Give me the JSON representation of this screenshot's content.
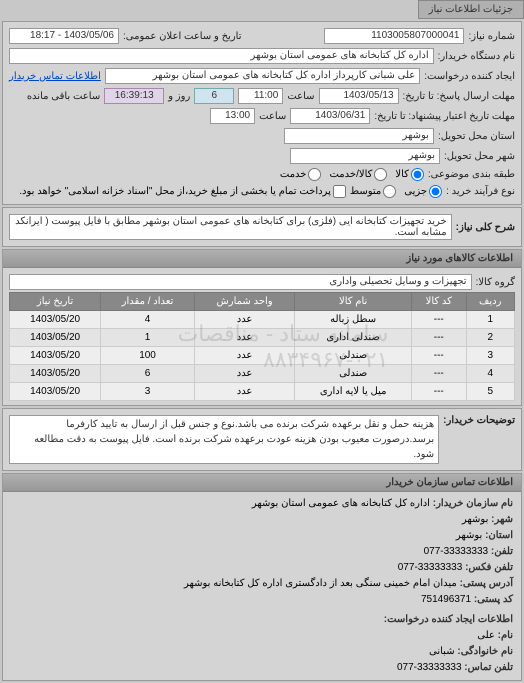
{
  "tabs": {
    "details": "جزئیات اطلاعات نیاز"
  },
  "header": {
    "reqno_lbl": "شماره نیاز:",
    "reqno": "1103005807000041",
    "announce_lbl": "تاریخ و ساعت اعلان عمومی:",
    "announce": "1403/05/06 - 18:17",
    "buyer_lbl": "نام دستگاه خریدار:",
    "buyer": "اداره کل کتابخانه های عمومی استان بوشهر",
    "requester_lbl": "ایجاد کننده درخواست:",
    "requester": "علی شبانی کارپرداز اداره کل کتابخانه های عمومی استان بوشهر",
    "contact_link": "اطلاعات تماس خریدار",
    "deadline_lbl": "مهلت ارسال پاسخ: تا تاریخ:",
    "deadline_date": "1403/05/13",
    "time_lbl": "ساعت",
    "deadline_time": "11:00",
    "days_left": "6",
    "days_lbl": "روز و",
    "hms_left": "16:39:13",
    "hms_lbl": "ساعت باقی مانده",
    "validity_lbl": "مهلت تاریخ اعتبار پیشنهاد: تا تاریخ:",
    "validity_date": "1403/06/31",
    "validity_time": "13:00",
    "province_lbl": "استان محل تحویل:",
    "province": "بوشهر",
    "city_lbl": "شهر محل تحویل:",
    "city": "بوشهر",
    "cat_lbl": "طبقه بندی موضوعی:",
    "cat_opts": {
      "goods": "کالا",
      "service": "کالا/خدمت",
      "svc": "خدمت"
    },
    "cat_selected": "goods",
    "purchase_lbl": "نوع فرآیند خرید :",
    "purchase_opts": {
      "low": "جزیی",
      "mid": "متوسط"
    },
    "purchase_selected": "low",
    "payment_lbl": "پرداخت تمام یا بخشی از مبلغ خرید،از محل \"اسناد خزانه اسلامی\" خواهد بود."
  },
  "need": {
    "title_lbl": "شرح کلی نیاز:",
    "title": "خرید تجهیزات کتابخانه ایی (فلزی) برای کتابخانه های عمومی استان بوشهر مطابق با فایل پیوست ( ایرانکد مشابه است."
  },
  "goods": {
    "section": "اطلاعات کالاهای مورد نیاز",
    "group_lbl": "گروه کالا:",
    "group": "تجهیزات و وسایل تحصیلی واداری",
    "cols": [
      "ردیف",
      "کد کالا",
      "نام کالا",
      "واحد شمارش",
      "تعداد / مقدار",
      "تاریخ نیاز"
    ],
    "rows": [
      [
        "1",
        "---",
        "سطل زباله",
        "عدد",
        "4",
        "1403/05/20"
      ],
      [
        "2",
        "---",
        "صندلی اداری",
        "عدد",
        "1",
        "1403/05/20"
      ],
      [
        "3",
        "---",
        "صندلی",
        "عدد",
        "100",
        "1403/05/20"
      ],
      [
        "4",
        "---",
        "صندلی",
        "عدد",
        "6",
        "1403/05/20"
      ],
      [
        "5",
        "---",
        "میل یا لایه اداری",
        "عدد",
        "3",
        "1403/05/20"
      ]
    ],
    "watermark": "سامانه ستاد - مناقصات ۰۲۱-۸۸۳۴۹۶۷"
  },
  "desc": {
    "lbl": "توضیحات خریدار:",
    "text": "هزینه حمل و نقل برعهده شرکت برنده می باشد.نوع و جنس قبل از ارسال به تایید کارفرما برسد.درصورت معیوب بودن هزینه عودت برعهده شرکت برنده است. فایل پیوست به دقت مطالعه شود."
  },
  "contact": {
    "section": "اطلاعات تماس سازمان خریدار",
    "org_lbl": "نام سازمان خریدار:",
    "org": "اداره کل کتابخانه های عمومی استان بوشهر",
    "city_lbl": "شهر:",
    "city": "بوشهر",
    "prov_lbl": "استان:",
    "prov": "بوشهر",
    "tel_lbl": "تلفن:",
    "tel": "33333333-077",
    "fax_lbl": "تلفن فکس:",
    "fax": "33333333-077",
    "addr_lbl": "آدرس پستی:",
    "addr": "میدان امام خمینی سنگی بعد از دادگستری اداره کل کتابخانه بوشهر",
    "zip_lbl": "کد پستی:",
    "zip": "751496371",
    "creator_section": "اطلاعات ایجاد کننده درخواست:",
    "name_lbl": "نام:",
    "name": "علی",
    "fam_lbl": "نام خانوادگی:",
    "fam": "شبانی",
    "tel2_lbl": "تلفن تماس:",
    "tel2": "33333333-077"
  }
}
